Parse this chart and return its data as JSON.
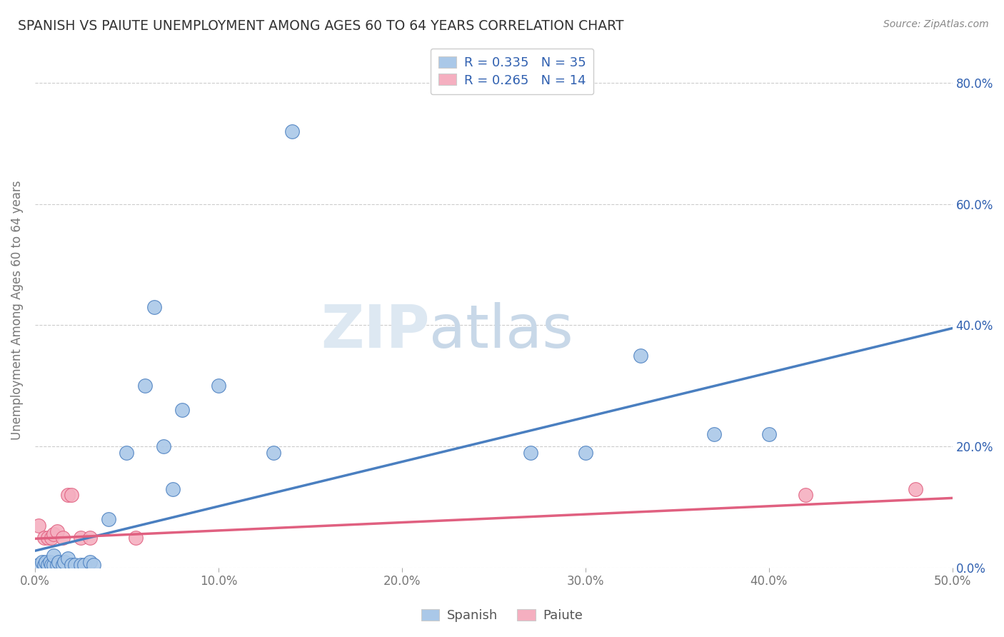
{
  "title": "SPANISH VS PAIUTE UNEMPLOYMENT AMONG AGES 60 TO 64 YEARS CORRELATION CHART",
  "source": "Source: ZipAtlas.com",
  "ylabel_label": "Unemployment Among Ages 60 to 64 years",
  "xlim": [
    0.0,
    0.5
  ],
  "ylim": [
    0.0,
    0.85
  ],
  "spanish_x": [
    0.002,
    0.004,
    0.005,
    0.006,
    0.007,
    0.008,
    0.009,
    0.01,
    0.01,
    0.012,
    0.013,
    0.015,
    0.016,
    0.018,
    0.02,
    0.022,
    0.025,
    0.027,
    0.03,
    0.032,
    0.04,
    0.05,
    0.06,
    0.065,
    0.07,
    0.075,
    0.08,
    0.1,
    0.13,
    0.14,
    0.27,
    0.3,
    0.33,
    0.37,
    0.4
  ],
  "spanish_y": [
    0.005,
    0.01,
    0.005,
    0.01,
    0.005,
    0.01,
    0.005,
    0.005,
    0.02,
    0.005,
    0.01,
    0.005,
    0.01,
    0.015,
    0.005,
    0.005,
    0.005,
    0.005,
    0.01,
    0.005,
    0.08,
    0.19,
    0.3,
    0.43,
    0.2,
    0.13,
    0.26,
    0.3,
    0.19,
    0.72,
    0.19,
    0.19,
    0.35,
    0.22,
    0.22
  ],
  "paiute_x": [
    0.002,
    0.005,
    0.007,
    0.009,
    0.01,
    0.012,
    0.015,
    0.018,
    0.02,
    0.025,
    0.03,
    0.055,
    0.42,
    0.48
  ],
  "paiute_y": [
    0.07,
    0.05,
    0.05,
    0.05,
    0.055,
    0.06,
    0.05,
    0.12,
    0.12,
    0.05,
    0.05,
    0.05,
    0.12,
    0.13
  ],
  "spanish_R": 0.335,
  "spanish_N": 35,
  "paiute_R": 0.265,
  "paiute_N": 14,
  "spanish_color": "#aac8e8",
  "paiute_color": "#f5afc0",
  "spanish_line_color": "#4a7fc0",
  "paiute_line_color": "#e06080",
  "spanish_trendline_start_y": 0.028,
  "spanish_trendline_end_y": 0.395,
  "paiute_trendline_start_y": 0.048,
  "paiute_trendline_end_y": 0.115,
  "legend_text_color": "#3060b0",
  "right_tick_color": "#3060b0",
  "background_color": "#ffffff",
  "watermark_zip": "ZIP",
  "watermark_atlas": "atlas",
  "grid_color": "#cccccc"
}
